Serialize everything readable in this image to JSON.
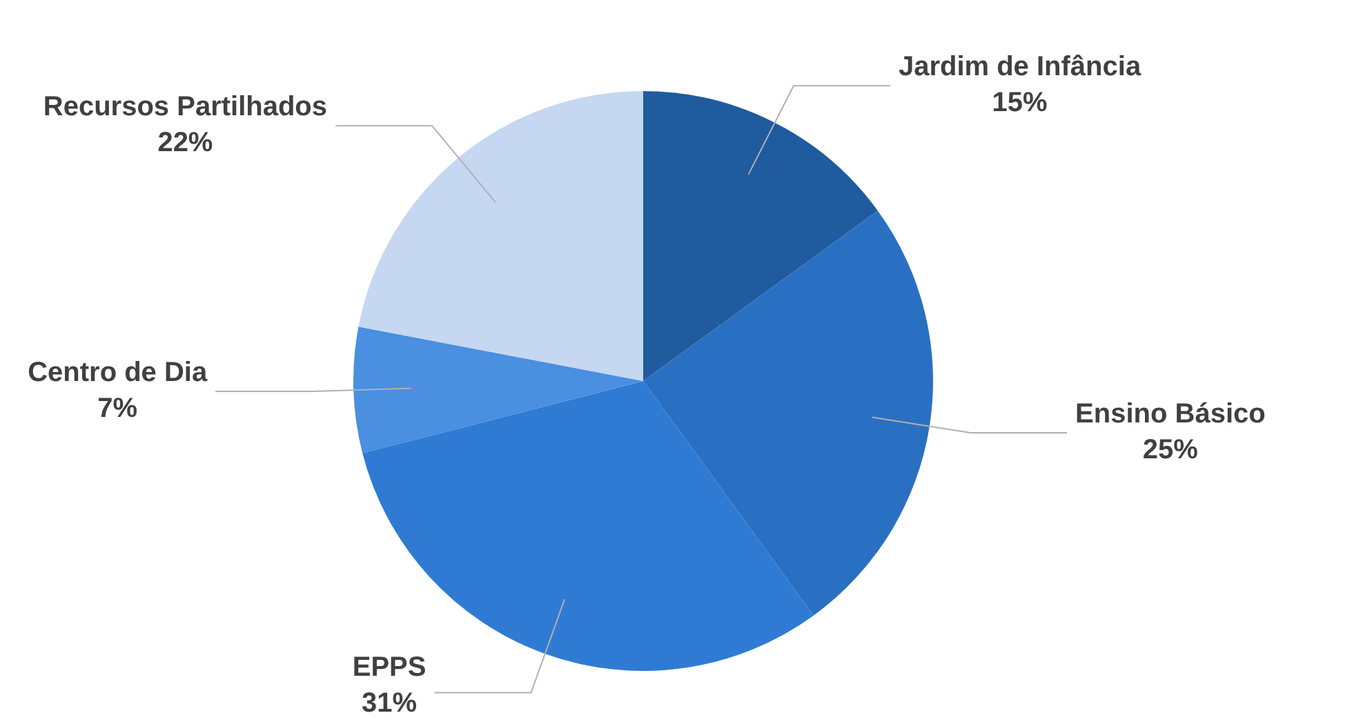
{
  "chart_data": {
    "type": "pie",
    "categories": [
      "Jardim de Infância",
      "Ensino Básico",
      "EPPS",
      "Centro de Dia",
      "Recursos Partilhados"
    ],
    "values": [
      15,
      25,
      31,
      7,
      22
    ],
    "colors": [
      "#1f5b9e",
      "#2a70c2",
      "#2f7bd3",
      "#4a8fe0",
      "#c6d7f1"
    ],
    "value_labels": [
      "15%",
      "25%",
      "31%",
      "7%",
      "22%"
    ],
    "legend": false
  }
}
